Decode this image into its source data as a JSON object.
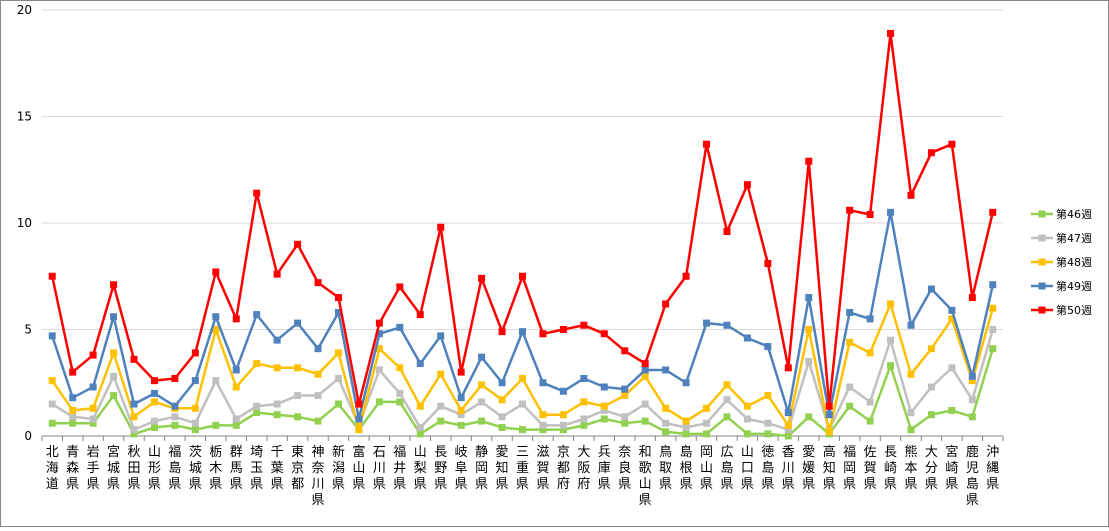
{
  "chart_data": {
    "type": "line",
    "title": "",
    "xlabel": "",
    "ylabel": "",
    "ylim": [
      0,
      20
    ],
    "yticks": [
      0,
      5,
      10,
      15,
      20
    ],
    "grid": "horizontal",
    "legend_position": "right",
    "categories": [
      "北海道",
      "青森県",
      "岩手県",
      "宮城県",
      "秋田県",
      "山形県",
      "福島県",
      "茨城県",
      "栃木県",
      "群馬県",
      "埼玉県",
      "千葉県",
      "東京都",
      "神奈川県",
      "新潟県",
      "富山県",
      "石川県",
      "福井県",
      "山梨県",
      "長野県",
      "岐阜県",
      "静岡県",
      "愛知県",
      "三重県",
      "滋賀県",
      "京都府",
      "大阪府",
      "兵庫県",
      "奈良県",
      "和歌山県",
      "鳥取県",
      "島根県",
      "岡山県",
      "広島県",
      "山口県",
      "徳島県",
      "香川県",
      "愛媛県",
      "高知県",
      "福岡県",
      "佐賀県",
      "長崎県",
      "熊本県",
      "大分県",
      "宮崎県",
      "鹿児島県",
      "沖縄県"
    ],
    "series": [
      {
        "name": "第46週",
        "color": "#92d050",
        "marker": "square",
        "values": [
          0.6,
          0.6,
          0.6,
          1.9,
          0.1,
          0.4,
          0.5,
          0.3,
          0.5,
          0.5,
          1.1,
          1.0,
          0.9,
          0.7,
          1.5,
          0.3,
          1.6,
          1.6,
          0.1,
          0.7,
          0.5,
          0.7,
          0.4,
          0.3,
          0.3,
          0.3,
          0.5,
          0.8,
          0.6,
          0.7,
          0.2,
          0.1,
          0.1,
          0.9,
          0.1,
          0.1,
          0.0,
          0.9,
          0.1,
          1.4,
          0.7,
          3.3,
          0.3,
          1.0,
          1.2,
          0.9,
          4.1
        ]
      },
      {
        "name": "第47週",
        "color": "#c0c0c0",
        "marker": "square",
        "values": [
          1.5,
          0.9,
          0.8,
          2.8,
          0.3,
          0.7,
          0.9,
          0.6,
          2.6,
          0.8,
          1.4,
          1.5,
          1.9,
          1.9,
          2.7,
          0.5,
          3.1,
          2.0,
          0.4,
          1.4,
          1.0,
          1.6,
          0.9,
          1.5,
          0.5,
          0.5,
          0.8,
          1.2,
          0.9,
          1.5,
          0.6,
          0.4,
          0.6,
          1.7,
          0.8,
          0.6,
          0.3,
          3.5,
          0.3,
          2.3,
          1.6,
          4.5,
          1.1,
          2.3,
          3.2,
          1.7,
          5.0
        ]
      },
      {
        "name": "第48週",
        "color": "#ffc000",
        "marker": "square",
        "values": [
          2.6,
          1.2,
          1.3,
          3.9,
          0.9,
          1.6,
          1.3,
          1.3,
          5.0,
          2.3,
          3.4,
          3.2,
          3.2,
          2.9,
          3.9,
          0.3,
          4.1,
          3.2,
          1.4,
          2.9,
          1.2,
          2.4,
          1.7,
          2.7,
          1.0,
          1.0,
          1.6,
          1.4,
          1.9,
          2.8,
          1.3,
          0.7,
          1.3,
          2.4,
          1.4,
          1.9,
          0.5,
          5.0,
          0.2,
          4.4,
          3.9,
          6.2,
          2.9,
          4.1,
          5.5,
          2.6,
          6.0
        ]
      },
      {
        "name": "第49週",
        "color": "#4f81bd",
        "marker": "square",
        "values": [
          4.7,
          1.8,
          2.3,
          5.6,
          1.5,
          2.0,
          1.4,
          2.6,
          5.6,
          3.1,
          5.7,
          4.5,
          5.3,
          4.1,
          5.8,
          0.8,
          4.8,
          5.1,
          3.4,
          4.7,
          1.8,
          3.7,
          2.5,
          4.9,
          2.5,
          2.1,
          2.7,
          2.3,
          2.2,
          3.1,
          3.1,
          2.5,
          5.3,
          5.2,
          4.6,
          4.2,
          1.1,
          6.5,
          1.0,
          5.8,
          5.5,
          10.5,
          5.2,
          6.9,
          5.9,
          2.8,
          7.1
        ]
      },
      {
        "name": "第50週",
        "color": "#ff0000",
        "marker": "square",
        "values": [
          7.5,
          3.0,
          3.8,
          7.1,
          3.6,
          2.6,
          2.7,
          3.9,
          7.7,
          5.5,
          11.4,
          7.6,
          9.0,
          7.2,
          6.5,
          1.5,
          5.3,
          7.0,
          5.7,
          9.8,
          3.0,
          7.4,
          4.9,
          7.5,
          4.8,
          5.0,
          5.2,
          4.8,
          4.0,
          3.4,
          6.2,
          7.5,
          13.7,
          9.6,
          11.8,
          8.1,
          3.2,
          12.9,
          1.4,
          10.6,
          10.4,
          18.9,
          11.3,
          13.3,
          13.7,
          6.5,
          10.5
        ]
      }
    ]
  }
}
